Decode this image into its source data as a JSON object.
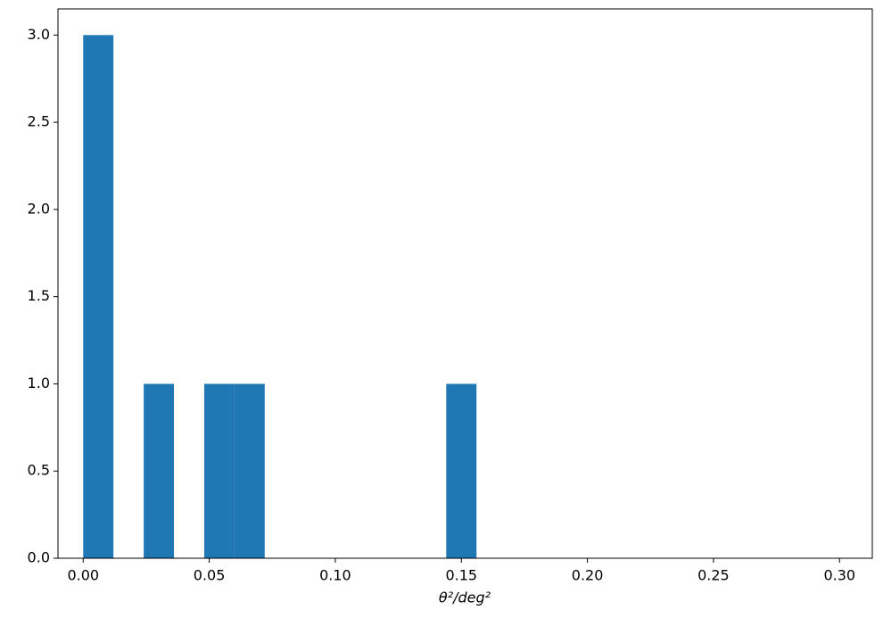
{
  "chart_data": {
    "type": "histogram",
    "xlabel": "θ²/deg²",
    "bins": [
      0,
      0.012,
      0.024,
      0.036,
      0.048,
      0.06,
      0.072,
      0.084,
      0.096,
      0.108,
      0.12,
      0.132,
      0.144,
      0.156,
      0.168,
      0.18,
      0.192,
      0.204,
      0.216,
      0.228,
      0.24,
      0.252,
      0.264,
      0.276,
      0.288,
      0.3
    ],
    "values": [
      3,
      0,
      1,
      0,
      1,
      1,
      0,
      0,
      0,
      0,
      0,
      0,
      1,
      0,
      0,
      0,
      0,
      0,
      0,
      0,
      0,
      0,
      0,
      0,
      0
    ],
    "color": "#1f77b4",
    "xlim": [
      -0.01,
      0.313
    ],
    "ylim": [
      0,
      3.15
    ],
    "xticks": [
      {
        "value": 0,
        "label": "0.00"
      },
      {
        "value": 0.05,
        "label": "0.05"
      },
      {
        "value": 0.1,
        "label": "0.10"
      },
      {
        "value": 0.15,
        "label": "0.15"
      },
      {
        "value": 0.2,
        "label": "0.20"
      },
      {
        "value": 0.25,
        "label": "0.25"
      },
      {
        "value": 0.3,
        "label": "0.30"
      }
    ],
    "yticks": [
      {
        "value": 0,
        "label": "0.0"
      },
      {
        "value": 0.5,
        "label": "0.5"
      },
      {
        "value": 1,
        "label": "1.0"
      },
      {
        "value": 1.5,
        "label": "1.5"
      },
      {
        "value": 2,
        "label": "2.0"
      },
      {
        "value": 2.5,
        "label": "2.5"
      },
      {
        "value": 3,
        "label": "3.0"
      }
    ]
  }
}
